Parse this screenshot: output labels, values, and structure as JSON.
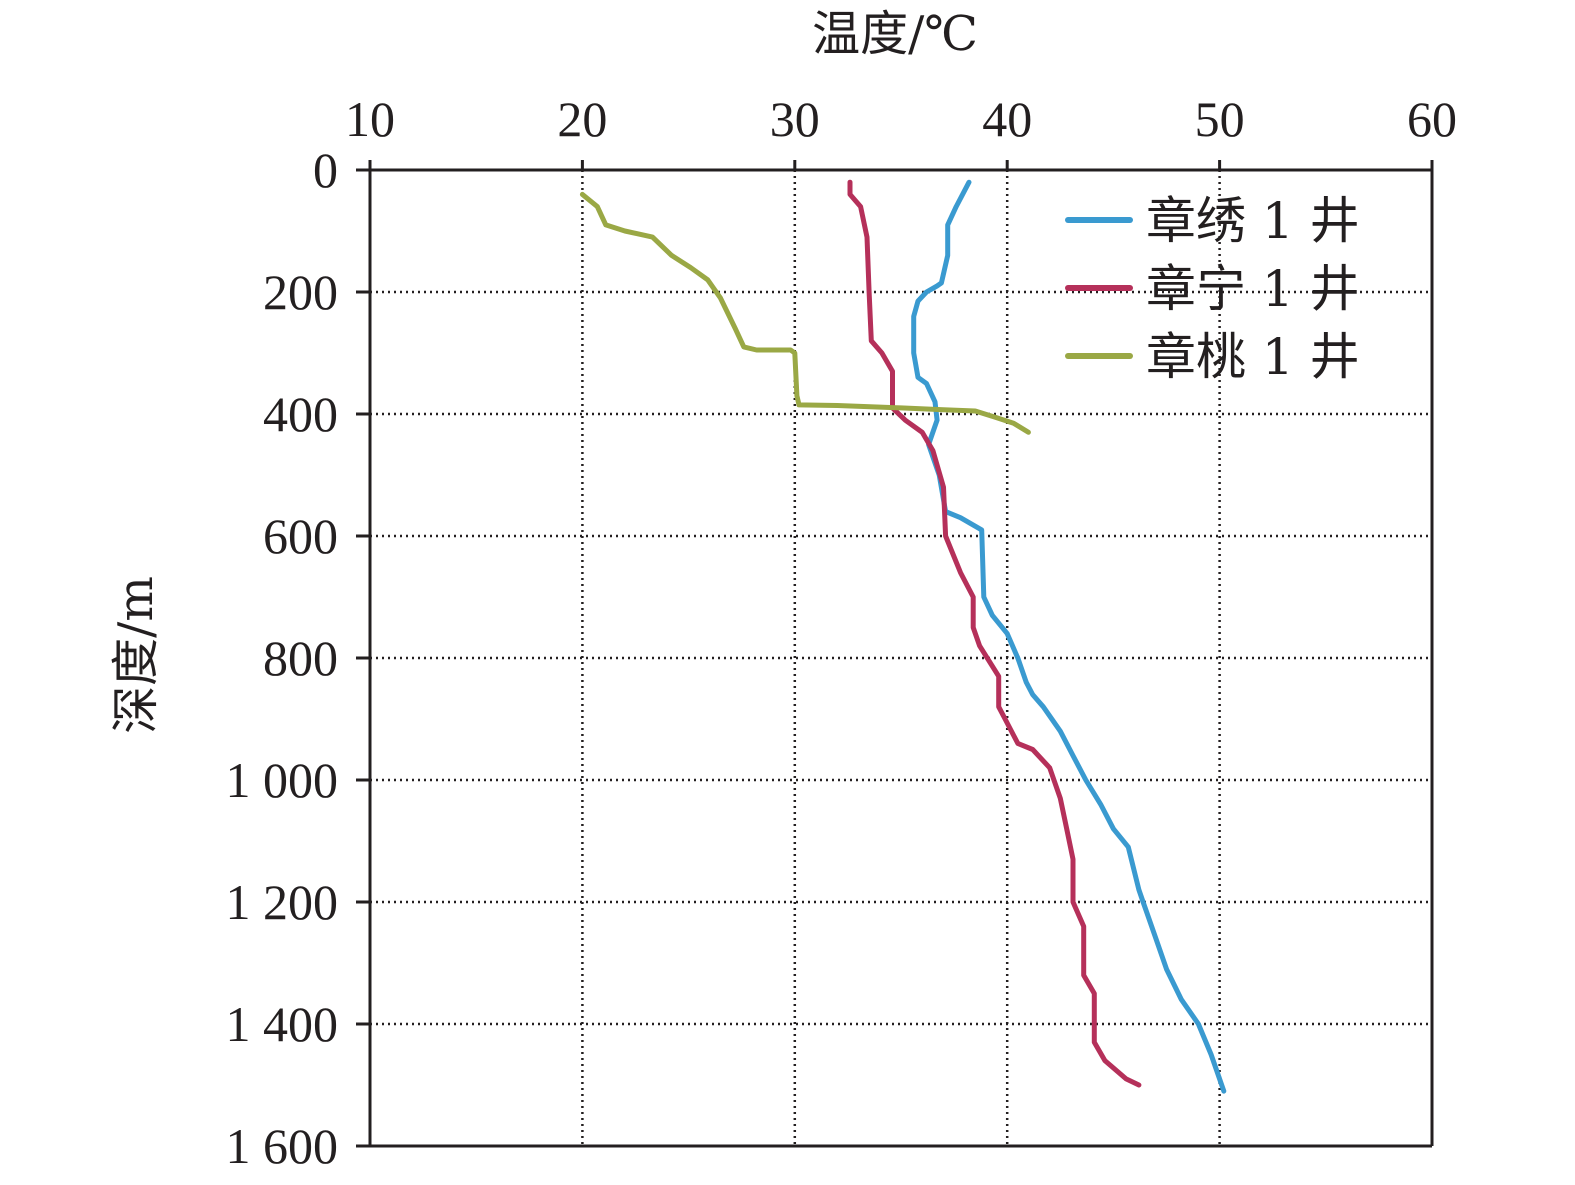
{
  "chart_data": {
    "type": "line",
    "xlabel": "温度/℃",
    "ylabel": "深度/m",
    "xlim": [
      10,
      60
    ],
    "ylim": [
      0,
      1600
    ],
    "y_inverted": true,
    "x_axis_position": "top",
    "x_ticks": [
      10,
      20,
      30,
      40,
      50,
      60
    ],
    "x_tick_labels": [
      "10",
      "20",
      "30",
      "40",
      "50",
      "60"
    ],
    "y_ticks": [
      0,
      200,
      400,
      600,
      800,
      1000,
      1200,
      1400,
      1600
    ],
    "y_tick_labels": [
      "0",
      "200",
      "400",
      "600",
      "800",
      "1 000",
      "1 200",
      "1 400",
      "1 600"
    ],
    "grid": true,
    "grid_style": "dotted",
    "legend_position": "top-right",
    "series": [
      {
        "name": "章绣 1 井",
        "color": "#3a9ad0",
        "points": [
          [
            38.2,
            20
          ],
          [
            37.6,
            60
          ],
          [
            37.2,
            90
          ],
          [
            37.2,
            140
          ],
          [
            36.9,
            185
          ],
          [
            36.7,
            190
          ],
          [
            36.2,
            200
          ],
          [
            35.8,
            215
          ],
          [
            35.6,
            240
          ],
          [
            35.6,
            300
          ],
          [
            35.8,
            340
          ],
          [
            36.2,
            350
          ],
          [
            36.6,
            380
          ],
          [
            36.7,
            410
          ],
          [
            36.3,
            450
          ],
          [
            36.8,
            500
          ],
          [
            37.1,
            560
          ],
          [
            37.8,
            570
          ],
          [
            38.3,
            580
          ],
          [
            38.8,
            590
          ],
          [
            38.9,
            700
          ],
          [
            39.3,
            730
          ],
          [
            40.0,
            760
          ],
          [
            40.5,
            800
          ],
          [
            40.9,
            840
          ],
          [
            41.2,
            860
          ],
          [
            41.7,
            880
          ],
          [
            42.5,
            920
          ],
          [
            43.1,
            960
          ],
          [
            43.7,
            1000
          ],
          [
            44.4,
            1040
          ],
          [
            45.0,
            1080
          ],
          [
            45.7,
            1110
          ],
          [
            46.2,
            1180
          ],
          [
            46.4,
            1200
          ],
          [
            47.0,
            1260
          ],
          [
            47.5,
            1310
          ],
          [
            48.2,
            1360
          ],
          [
            49.0,
            1400
          ],
          [
            49.6,
            1450
          ],
          [
            50.2,
            1510
          ]
        ]
      },
      {
        "name": "章宁 1 井",
        "color": "#b5305a",
        "points": [
          [
            32.6,
            20
          ],
          [
            32.6,
            40
          ],
          [
            33.1,
            60
          ],
          [
            33.4,
            110
          ],
          [
            33.5,
            200
          ],
          [
            33.6,
            280
          ],
          [
            34.1,
            300
          ],
          [
            34.6,
            330
          ],
          [
            34.6,
            390
          ],
          [
            35.2,
            410
          ],
          [
            36.0,
            430
          ],
          [
            36.5,
            460
          ],
          [
            37.0,
            520
          ],
          [
            37.1,
            600
          ],
          [
            37.8,
            660
          ],
          [
            38.4,
            700
          ],
          [
            38.4,
            750
          ],
          [
            38.7,
            780
          ],
          [
            39.6,
            830
          ],
          [
            39.6,
            880
          ],
          [
            39.9,
            900
          ],
          [
            40.5,
            940
          ],
          [
            41.2,
            950
          ],
          [
            42.0,
            980
          ],
          [
            42.5,
            1030
          ],
          [
            42.8,
            1080
          ],
          [
            43.1,
            1130
          ],
          [
            43.1,
            1200
          ],
          [
            43.6,
            1240
          ],
          [
            43.6,
            1320
          ],
          [
            44.1,
            1350
          ],
          [
            44.1,
            1430
          ],
          [
            44.6,
            1460
          ],
          [
            45.6,
            1490
          ],
          [
            46.2,
            1500
          ]
        ]
      },
      {
        "name": "章桃 1 井",
        "color": "#9aa845",
        "points": [
          [
            20.0,
            40
          ],
          [
            20.7,
            60
          ],
          [
            21.1,
            90
          ],
          [
            22.0,
            100
          ],
          [
            23.3,
            110
          ],
          [
            24.2,
            140
          ],
          [
            25.1,
            160
          ],
          [
            25.9,
            180
          ],
          [
            26.5,
            210
          ],
          [
            27.2,
            260
          ],
          [
            27.6,
            290
          ],
          [
            28.2,
            295
          ],
          [
            29.8,
            295
          ],
          [
            30.0,
            300
          ],
          [
            30.1,
            370
          ],
          [
            30.2,
            385
          ],
          [
            32.0,
            386
          ],
          [
            35.0,
            390
          ],
          [
            37.0,
            393
          ],
          [
            38.5,
            395
          ],
          [
            39.4,
            405
          ],
          [
            40.3,
            415
          ],
          [
            41.0,
            430
          ]
        ]
      }
    ]
  }
}
